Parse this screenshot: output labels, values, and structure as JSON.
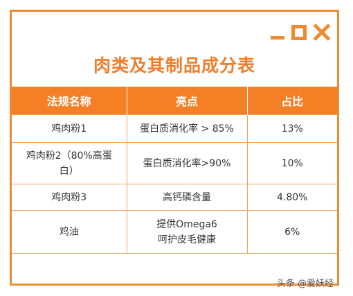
{
  "colors": {
    "accent": "#f08a2e",
    "header_bg": "#f57f25",
    "header_text": "#ffffff"
  },
  "window_controls": {
    "minimize_icon": "minimize-icon",
    "maximize_icon": "maximize-icon",
    "close_icon": "close-icon"
  },
  "title": "肉类及其制品成分表",
  "table": {
    "headers": [
      "法规名称",
      "亮点",
      "占比"
    ],
    "rows": [
      {
        "name": "鸡肉粉1",
        "highlight_1": "蛋白质消化率 > 85%",
        "highlight_2": "",
        "ratio": "13%"
      },
      {
        "name": "鸡肉粉2（80%高蛋白）",
        "highlight_1": "蛋白质消化率>90%",
        "highlight_2": "",
        "ratio": "10%"
      },
      {
        "name": "鸡肉粉3",
        "highlight_1": "高钙磷含量",
        "highlight_2": "",
        "ratio": "4.80%"
      },
      {
        "name": "鸡油",
        "highlight_1": "提供Omega6",
        "highlight_2": "呵护皮毛健康",
        "ratio": "6%"
      }
    ]
  },
  "footer_watermark": "头条 @爱妖经"
}
